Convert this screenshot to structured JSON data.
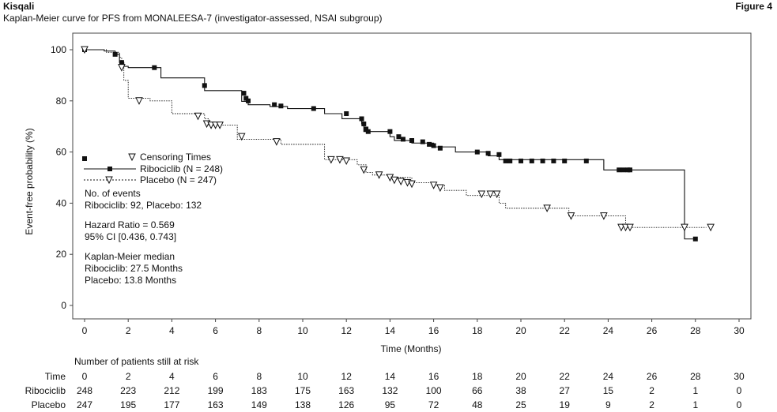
{
  "header": {
    "brand": "Kisqali",
    "figure_label": "Figure 4",
    "subtitle": "Kaplan-Meier curve for PFS from MONALEESA-7 (investigator-assessed, NSAI subgroup)"
  },
  "chart_data": {
    "type": "line",
    "title": "Kaplan-Meier curve for PFS from MONALEESA-7 (investigator-assessed, NSAI subgroup)",
    "xlabel": "Time (Months)",
    "ylabel": "Event-free probability (%)",
    "xlim": [
      0,
      30
    ],
    "ylim": [
      0,
      100
    ],
    "x_ticks": [
      0,
      2,
      4,
      6,
      8,
      10,
      12,
      14,
      16,
      18,
      20,
      22,
      24,
      26,
      28,
      30
    ],
    "y_ticks": [
      0,
      20,
      40,
      60,
      80,
      100
    ],
    "grid": false,
    "legend": {
      "placement": "left",
      "censor_label": "Censoring Times",
      "entries": [
        "Ribociclib (N = 248)",
        "Placebo (N = 247)"
      ]
    },
    "annotations": [
      "No. of events",
      "Ribociclib: 92, Placebo: 132",
      "Hazard Ratio = 0.569",
      "95% CI [0.436, 0.743]",
      "Kaplan-Meier median",
      "Ribociclib: 27.5 Months",
      "Placebo: 13.8 Months"
    ],
    "series": [
      {
        "name": "Ribociclib (N = 248)",
        "line_style": "solid",
        "censor_marker": "filled-square",
        "x": [
          0,
          0.9,
          1.4,
          1.6,
          1.8,
          2.0,
          3.5,
          5.5,
          7.2,
          7.5,
          8.5,
          9.3,
          10.0,
          11.0,
          11.8,
          12.7,
          12.8,
          13.0,
          14.0,
          14.2,
          15.0,
          16.0,
          17.0,
          18.5,
          19.0,
          23.8,
          27.5,
          28.0
        ],
        "y": [
          100,
          99.5,
          98.2,
          95.0,
          93.5,
          93.0,
          89.0,
          84.0,
          79.8,
          78.5,
          77.8,
          77.0,
          77.0,
          75.0,
          73.0,
          71.0,
          68.0,
          68.0,
          66.0,
          64.5,
          63.5,
          62.0,
          60.0,
          58.5,
          57.0,
          53.0,
          26.0,
          26.0
        ],
        "censor_x": [
          0,
          1.4,
          1.7,
          3.2,
          5.5,
          7.3,
          7.4,
          7.5,
          8.7,
          9.0,
          10.5,
          12.0,
          12.7,
          12.8,
          12.9,
          13.0,
          14.0,
          14.4,
          14.6,
          15.0,
          15.5,
          15.8,
          16.0,
          16.3,
          18.0,
          18.5,
          19.0,
          19.3,
          19.5,
          20.0,
          20.5,
          21.0,
          21.5,
          22.0,
          23.0,
          24.5,
          24.7,
          24.9,
          25.0,
          28.0
        ],
        "censor_y": [
          100,
          98.2,
          95.0,
          93.0,
          86.0,
          83.0,
          81.0,
          80.0,
          78.5,
          78.0,
          77.0,
          75.0,
          73.0,
          71.0,
          69.0,
          68.0,
          68.0,
          66.0,
          65.0,
          64.5,
          64.0,
          63.0,
          62.5,
          61.5,
          60.0,
          59.5,
          59.0,
          56.5,
          56.5,
          56.5,
          56.5,
          56.5,
          56.5,
          56.5,
          56.5,
          53.0,
          53.0,
          53.0,
          53.0,
          26.0
        ]
      },
      {
        "name": "Placebo (N = 247)",
        "line_style": "dotted",
        "censor_marker": "open-triangle",
        "x": [
          0,
          1.0,
          1.6,
          1.7,
          1.8,
          2.0,
          3.0,
          4.0,
          5.5,
          5.7,
          7.0,
          9.0,
          11.0,
          12.5,
          12.9,
          13.2,
          14.0,
          15.0,
          16.0,
          16.5,
          17.5,
          19.0,
          19.3,
          22.0,
          22.2,
          24.5,
          24.8,
          28.5
        ],
        "y": [
          100,
          99.0,
          97.0,
          93.0,
          88.0,
          81.0,
          80.0,
          75.0,
          73.0,
          70.5,
          65.0,
          63.0,
          57.0,
          55.0,
          52.0,
          51.0,
          50.0,
          48.0,
          47.0,
          45.0,
          43.0,
          40.0,
          38.0,
          38.0,
          35.0,
          35.0,
          30.5,
          30.5
        ],
        "censor_x": [
          0,
          1.7,
          2.5,
          5.2,
          5.6,
          5.8,
          6.0,
          6.2,
          7.2,
          8.8,
          11.3,
          11.7,
          12.0,
          12.8,
          13.5,
          14.0,
          14.2,
          14.5,
          14.8,
          15.0,
          16.0,
          16.3,
          18.2,
          18.6,
          18.9,
          21.2,
          22.3,
          23.8,
          24.6,
          24.8,
          25.0,
          27.5,
          28.7
        ],
        "censor_y": [
          100,
          93.0,
          80.0,
          74.0,
          71.0,
          70.5,
          70.5,
          70.5,
          66.0,
          64.0,
          57.0,
          57.0,
          56.5,
          53.0,
          51.0,
          50.0,
          49.0,
          48.5,
          48.0,
          47.5,
          47.0,
          46.0,
          43.5,
          43.5,
          43.5,
          38.0,
          35.0,
          35.0,
          30.5,
          30.5,
          30.5,
          30.5,
          30.5
        ]
      }
    ],
    "risk_table": {
      "title": "Number of patients still at risk",
      "row_labels": [
        "Time",
        "Ribociclib",
        "Placebo"
      ],
      "time": [
        "0",
        "2",
        "4",
        "6",
        "8",
        "10",
        "12",
        "14",
        "16",
        "18",
        "20",
        "22",
        "24",
        "26",
        "28",
        "30"
      ],
      "ribociclib": [
        "248",
        "223",
        "212",
        "199",
        "183",
        "175",
        "163",
        "132",
        "100",
        "66",
        "38",
        "27",
        "15",
        "2",
        "1",
        "0"
      ],
      "placebo": [
        "247",
        "195",
        "177",
        "163",
        "149",
        "138",
        "126",
        "95",
        "72",
        "48",
        "25",
        "19",
        "9",
        "2",
        "1",
        "0"
      ]
    }
  }
}
